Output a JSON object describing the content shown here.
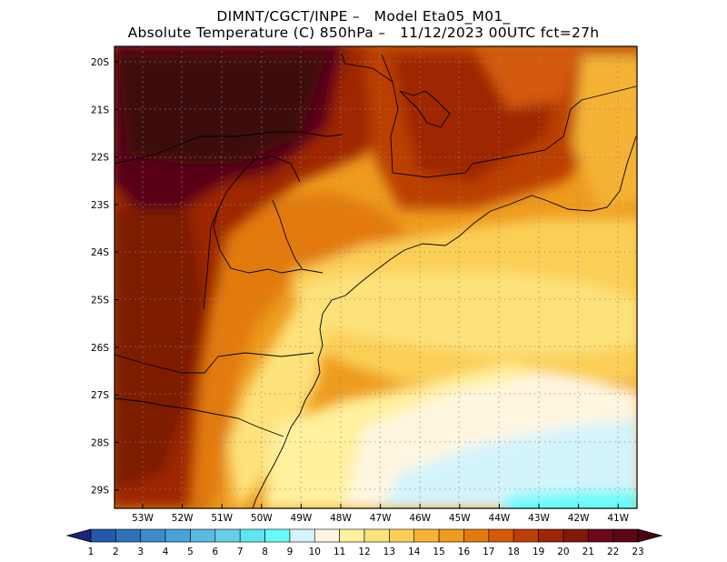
{
  "header": {
    "line1": "DIMNT/CGCT/INPE –   Model Eta05_M01_",
    "line2": "Absolute Temperature (C) 850hPa –   11/12/2023 00UTC fct=27h"
  },
  "map": {
    "lat_labels": [
      "20S",
      "21S",
      "22S",
      "23S",
      "24S",
      "25S",
      "26S",
      "27S",
      "28S",
      "29S"
    ],
    "lon_labels": [
      "53W",
      "52W",
      "51W",
      "50W",
      "49W",
      "48W",
      "47W",
      "46W",
      "45W",
      "44W",
      "43W",
      "42W",
      "41W"
    ],
    "grid": "dotted"
  },
  "colorbar": {
    "labels": [
      "1",
      "2",
      "3",
      "4",
      "5",
      "6",
      "7",
      "8",
      "9",
      "10",
      "11",
      "12",
      "13",
      "14",
      "15",
      "16",
      "17",
      "18",
      "19",
      "20",
      "21",
      "22",
      "23"
    ],
    "colors": [
      "#1f3a93",
      "#2359a8",
      "#2d72b8",
      "#3a8bc8",
      "#4aa3d6",
      "#5bbbe2",
      "#66cfe8",
      "#5ee5f0",
      "#66fbfb",
      "#d4f4fb",
      "#fff6e0",
      "#fff19e",
      "#fde27a",
      "#fbcf56",
      "#f4b334",
      "#ee9b1e",
      "#e37a10",
      "#d45a08",
      "#bb3f06",
      "#9e2706",
      "#7e1a06",
      "#6a0a1a",
      "#5a0614"
    ],
    "arrow_left": "#1a237e",
    "arrow_right": "#4a0410"
  }
}
